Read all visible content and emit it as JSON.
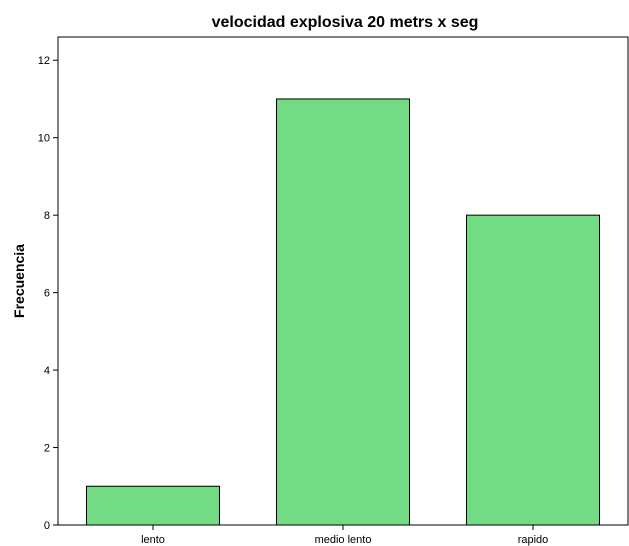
{
  "chart_data": {
    "type": "bar",
    "title": "velocidad explosiva 20 metrs x seg",
    "xlabel": "",
    "ylabel": "Frecuencia",
    "categories": [
      "lento",
      "medio lento",
      "rapido"
    ],
    "values": [
      1,
      11,
      8
    ],
    "ylim": [
      0,
      12.6
    ],
    "yticks": [
      0,
      2,
      4,
      6,
      8,
      10,
      12
    ],
    "bar_color": "#72dc84",
    "grid": false,
    "legend": "none"
  }
}
